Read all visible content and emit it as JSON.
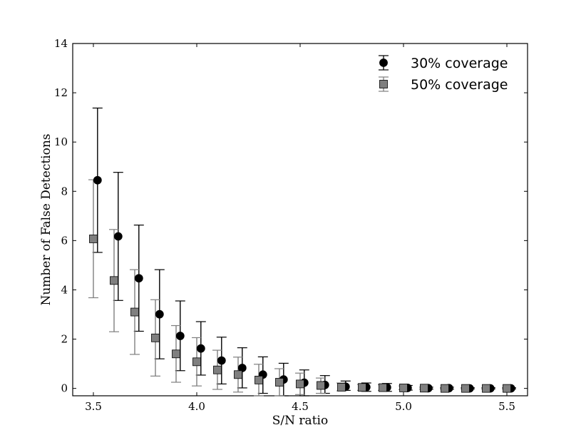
{
  "chart_data": {
    "type": "scatter",
    "xlabel": "S/N ratio",
    "ylabel": "Number of False Detections",
    "xlim": [
      3.4,
      5.6
    ],
    "ylim": [
      -0.3,
      14
    ],
    "xticks": [
      3.5,
      4.0,
      4.5,
      5.0,
      5.5
    ],
    "xtick_labels": [
      "3.5",
      "4.0",
      "4.5",
      "5.0",
      "5.5"
    ],
    "yticks": [
      0,
      2,
      4,
      6,
      8,
      10,
      12,
      14
    ],
    "ytick_labels": [
      "0",
      "2",
      "4",
      "6",
      "8",
      "10",
      "12",
      "14"
    ],
    "grid": false,
    "legend_position": "top-right",
    "series": [
      {
        "name": "30% coverage",
        "marker": "circle",
        "color": "#000000",
        "errorbar_color": "#000000",
        "x": [
          3.52,
          3.62,
          3.72,
          3.82,
          3.92,
          4.02,
          4.12,
          4.22,
          4.32,
          4.42,
          4.52,
          4.62,
          4.72,
          4.82,
          4.92,
          5.02,
          5.12,
          5.22,
          5.32,
          5.42,
          5.52
        ],
        "y": [
          8.45,
          6.17,
          4.47,
          3.01,
          2.13,
          1.62,
          1.13,
          0.83,
          0.56,
          0.36,
          0.23,
          0.14,
          0.07,
          0.05,
          0.04,
          0.02,
          0.01,
          0.01,
          0.0,
          0.0,
          0.0
        ],
        "y_err_low": [
          5.52,
          3.57,
          2.32,
          1.2,
          0.72,
          0.54,
          0.18,
          0.02,
          -0.2,
          -0.3,
          -0.3,
          -0.2,
          -0.08,
          -0.12,
          -0.12,
          -0.07,
          -0.03,
          -0.03,
          -0.02,
          -0.02,
          -0.02
        ],
        "y_err_high": [
          11.38,
          8.77,
          6.63,
          4.82,
          3.55,
          2.71,
          2.08,
          1.65,
          1.28,
          1.02,
          0.75,
          0.52,
          0.3,
          0.22,
          0.2,
          0.12,
          0.05,
          0.05,
          0.03,
          0.03,
          0.03
        ]
      },
      {
        "name": "50% coverage",
        "marker": "square",
        "color": "#7f7f7f",
        "errorbar_color": "#7f7f7f",
        "x": [
          3.5,
          3.6,
          3.7,
          3.8,
          3.9,
          4.0,
          4.1,
          4.2,
          4.3,
          4.4,
          4.5,
          4.6,
          4.7,
          4.8,
          4.9,
          5.0,
          5.1,
          5.2,
          5.3,
          5.4,
          5.5
        ],
        "y": [
          6.07,
          4.38,
          3.1,
          2.05,
          1.4,
          1.08,
          0.75,
          0.56,
          0.34,
          0.25,
          0.18,
          0.12,
          0.05,
          0.04,
          0.03,
          0.02,
          0.01,
          0.0,
          0.0,
          0.0,
          0.0
        ],
        "y_err_low": [
          3.68,
          2.3,
          1.38,
          0.5,
          0.25,
          0.1,
          -0.04,
          -0.15,
          -0.3,
          -0.3,
          -0.25,
          -0.2,
          -0.1,
          -0.08,
          -0.08,
          -0.05,
          -0.03,
          -0.02,
          -0.02,
          -0.02,
          -0.02
        ],
        "y_err_high": [
          8.47,
          6.45,
          4.82,
          3.6,
          2.55,
          2.06,
          1.55,
          1.27,
          0.98,
          0.8,
          0.62,
          0.42,
          0.22,
          0.16,
          0.15,
          0.1,
          0.05,
          0.03,
          0.03,
          0.03,
          0.03
        ]
      }
    ]
  }
}
